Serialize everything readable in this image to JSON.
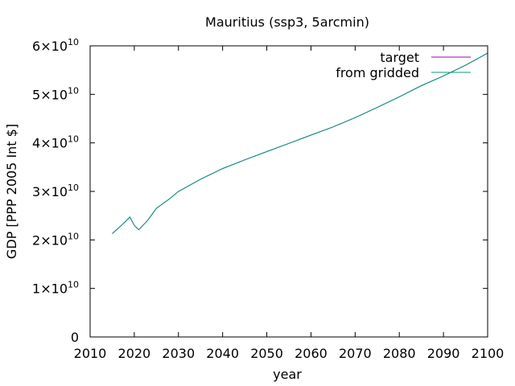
{
  "chart_data": {
    "type": "line",
    "title": "Mauritius (ssp3, 5arcmin)",
    "xlabel": "year",
    "ylabel": "GDP [PPP 2005 Int $]",
    "xlim": [
      2010,
      2100
    ],
    "ylim": [
      0,
      60000000000
    ],
    "x_ticks": [
      2010,
      2020,
      2030,
      2040,
      2050,
      2060,
      2070,
      2080,
      2090,
      2100
    ],
    "y_ticks": [
      {
        "value": 0,
        "mantissa": "0",
        "exponent": ""
      },
      {
        "value": 10000000000,
        "mantissa": "1×10",
        "exponent": "10"
      },
      {
        "value": 20000000000,
        "mantissa": "2×10",
        "exponent": "10"
      },
      {
        "value": 30000000000,
        "mantissa": "3×10",
        "exponent": "10"
      },
      {
        "value": 40000000000,
        "mantissa": "4×10",
        "exponent": "10"
      },
      {
        "value": 50000000000,
        "mantissa": "5×10",
        "exponent": "10"
      },
      {
        "value": 60000000000,
        "mantissa": "6×10",
        "exponent": "10"
      }
    ],
    "grid": false,
    "legend_position": "top-right",
    "series": [
      {
        "name": "target",
        "color": "#9400d3",
        "x": [
          2015,
          2017,
          2019,
          2020,
          2021,
          2023,
          2025,
          2028,
          2030,
          2035,
          2040,
          2045,
          2050,
          2055,
          2060,
          2065,
          2070,
          2075,
          2080,
          2085,
          2090,
          2095,
          2100
        ],
        "y": [
          21300000000,
          22900000000,
          24700000000,
          23000000000,
          22100000000,
          24000000000,
          26500000000,
          28500000000,
          30000000000,
          32500000000,
          34700000000,
          36500000000,
          38200000000,
          39900000000,
          41600000000,
          43300000000,
          45200000000,
          47300000000,
          49500000000,
          51800000000,
          53800000000,
          56000000000,
          58500000000
        ]
      },
      {
        "name": "from gridded",
        "color": "#009e73",
        "x": [
          2015,
          2017,
          2019,
          2020,
          2021,
          2023,
          2025,
          2028,
          2030,
          2035,
          2040,
          2045,
          2050,
          2055,
          2060,
          2065,
          2070,
          2075,
          2080,
          2085,
          2090,
          2095,
          2100
        ],
        "y": [
          21300000000,
          22900000000,
          24700000000,
          23000000000,
          22100000000,
          24000000000,
          26500000000,
          28500000000,
          30000000000,
          32500000000,
          34700000000,
          36500000000,
          38200000000,
          39900000000,
          41600000000,
          43300000000,
          45200000000,
          47300000000,
          49500000000,
          51800000000,
          53800000000,
          56000000000,
          58500000000
        ]
      }
    ]
  }
}
